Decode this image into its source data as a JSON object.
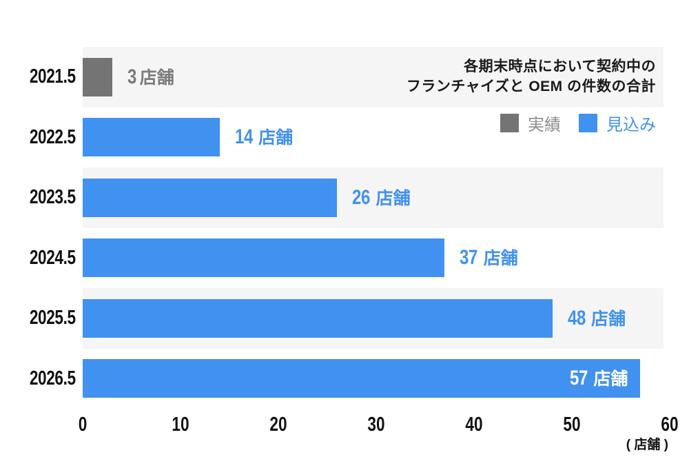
{
  "chart_data": {
    "type": "bar",
    "orientation": "horizontal",
    "title": "",
    "categories": [
      "2021.5",
      "2022.5",
      "2023.5",
      "2024.5",
      "2025.5",
      "2026.5"
    ],
    "values": [
      3,
      14,
      26,
      37,
      48,
      57
    ],
    "value_labels": [
      {
        "num": "3",
        "unit": "店舗",
        "placement": "outside",
        "color": "#7b7b7b"
      },
      {
        "num": "14",
        "unit": "店舗",
        "placement": "outside",
        "color": "#4191f0"
      },
      {
        "num": "26",
        "unit": "店舗",
        "placement": "outside",
        "color": "#4191f0"
      },
      {
        "num": "37",
        "unit": "店舗",
        "placement": "outside",
        "color": "#4191f0"
      },
      {
        "num": "48",
        "unit": "店舗",
        "placement": "outside",
        "color": "#4191f0"
      },
      {
        "num": "57",
        "unit": "店舗",
        "placement": "inside",
        "color": "#ffffff"
      }
    ],
    "bar_colors": [
      "#747474",
      "#4191f0",
      "#4191f0",
      "#4191f0",
      "#4191f0",
      "#4191f0"
    ],
    "series": [
      {
        "name": "実績",
        "color": "#747474",
        "rows": [
          0
        ]
      },
      {
        "name": "見込み",
        "color": "#4191f0",
        "rows": [
          1,
          2,
          3,
          4,
          5
        ]
      }
    ],
    "xlim": [
      0,
      60
    ],
    "x_ticks": [
      "0",
      "10",
      "20",
      "30",
      "40",
      "50",
      "60"
    ],
    "x_axis_unit": "( 店舗 )",
    "grid": false,
    "row_stripe_colors": [
      "#f5f5f6",
      "#ffffff"
    ],
    "legend_position": "top-right",
    "annotation": {
      "line1": "各期末時点において契約中の",
      "line2": "フランチャイズと OEM の件数の合計"
    },
    "legend": [
      {
        "label": "実績",
        "swatch_color": "#747474",
        "text_color": "#8d8d8d"
      },
      {
        "label": "見込み",
        "swatch_color": "#4191f0",
        "text_color": "#4191f0"
      }
    ]
  }
}
